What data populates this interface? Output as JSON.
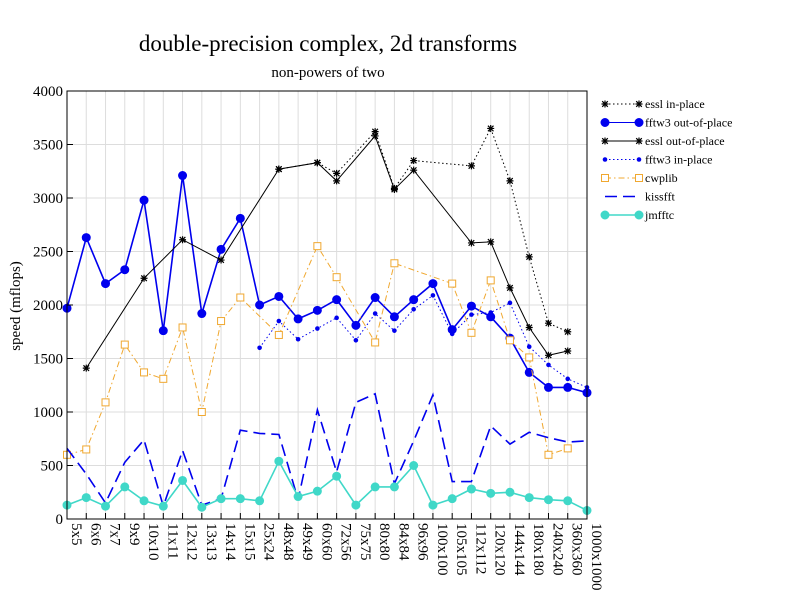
{
  "chart_data": {
    "type": "line",
    "title": "double-precision complex, 2d transforms",
    "subtitle": "non-powers of two",
    "xlabel": "",
    "ylabel": "speed (mflops)",
    "ylim": [
      0,
      4000
    ],
    "yticks": [
      0,
      500,
      1000,
      1500,
      2000,
      2500,
      3000,
      3500,
      4000
    ],
    "grid": true,
    "legend_position": "right",
    "categories": [
      "5x5",
      "6x6",
      "7x7",
      "9x9",
      "10x10",
      "11x11",
      "12x12",
      "13x13",
      "14x14",
      "15x15",
      "25x24",
      "48x48",
      "49x49",
      "60x60",
      "72x56",
      "75x75",
      "80x80",
      "84x84",
      "96x96",
      "100x100",
      "105x105",
      "112x112",
      "120x120",
      "144x144",
      "180x180",
      "240x240",
      "360x360",
      "1000x1000"
    ],
    "series": [
      {
        "name": "essl in-place",
        "color": "#000000",
        "dash": "dotted",
        "marker": "star",
        "values": [
          null,
          null,
          null,
          null,
          null,
          null,
          null,
          null,
          null,
          null,
          null,
          3270,
          null,
          3330,
          3230,
          null,
          3620,
          3090,
          3350,
          null,
          null,
          3300,
          3650,
          3160,
          2450,
          1830,
          1750,
          null
        ]
      },
      {
        "name": "fftw3 out-of-place",
        "color": "#0000ee",
        "dash": "solid",
        "marker": "circle",
        "values": [
          1970,
          2630,
          2200,
          2330,
          2980,
          1760,
          3210,
          1920,
          2520,
          2810,
          2000,
          2080,
          1870,
          1950,
          2050,
          1810,
          2070,
          1890,
          2050,
          2200,
          1770,
          1990,
          1890,
          1690,
          1370,
          1230,
          1230,
          1180
        ]
      },
      {
        "name": "essl out-of-place",
        "color": "#000000",
        "dash": "solid",
        "marker": "star",
        "values": [
          null,
          1410,
          null,
          null,
          2250,
          null,
          2610,
          null,
          2420,
          null,
          null,
          3270,
          null,
          3330,
          3160,
          null,
          3580,
          3080,
          3260,
          null,
          null,
          2580,
          2590,
          2160,
          1790,
          1530,
          1570,
          null
        ]
      },
      {
        "name": "fftw3 in-place",
        "color": "#0000ee",
        "dash": "dotted",
        "marker": "dot",
        "values": [
          null,
          null,
          null,
          null,
          null,
          null,
          null,
          null,
          null,
          null,
          1600,
          1850,
          1680,
          1780,
          1880,
          1670,
          1920,
          1760,
          1960,
          2090,
          1730,
          1910,
          1930,
          2020,
          1610,
          1440,
          1310,
          1230
        ]
      },
      {
        "name": "cwplib",
        "color": "#f0a830",
        "dash": "dashdot",
        "marker": "square",
        "values": [
          600,
          650,
          1090,
          1630,
          1370,
          1310,
          1790,
          1000,
          1850,
          2070,
          null,
          1720,
          null,
          2550,
          2260,
          null,
          1650,
          2390,
          null,
          null,
          2200,
          1740,
          2230,
          1670,
          1510,
          600,
          660,
          null
        ]
      },
      {
        "name": "kissfft",
        "color": "#0000ee",
        "dash": "longdash",
        "marker": "none",
        "values": [
          660,
          420,
          150,
          530,
          740,
          120,
          640,
          130,
          190,
          830,
          800,
          790,
          180,
          1020,
          440,
          1090,
          1170,
          330,
          730,
          1160,
          350,
          350,
          870,
          700,
          810,
          760,
          720,
          730
        ]
      },
      {
        "name": "jmfftc",
        "color": "#40d8c8",
        "dash": "solid",
        "marker": "circle",
        "values": [
          130,
          200,
          120,
          300,
          170,
          120,
          360,
          110,
          190,
          190,
          170,
          540,
          210,
          260,
          400,
          130,
          300,
          300,
          500,
          130,
          190,
          280,
          240,
          250,
          200,
          180,
          170,
          80
        ]
      }
    ]
  }
}
